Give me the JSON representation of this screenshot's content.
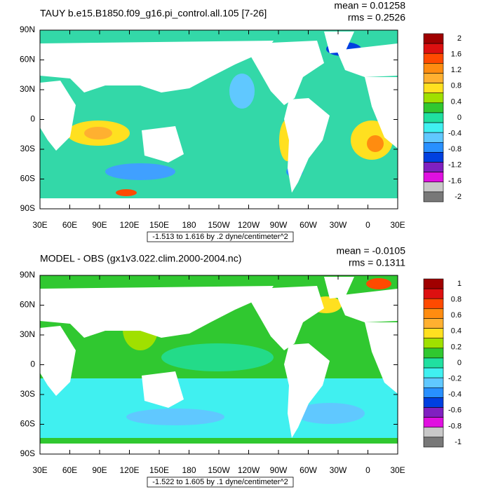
{
  "panels": [
    {
      "title": "TAUY b.e15.B1850.f09_g16.pi_control.all.105 [7-26]",
      "mean": "mean = 0.01258",
      "rms": "rms = 0.2526",
      "range_label": "-1.513 to 1.616 by .2 dyne/centimeter^2",
      "colorbar_labels": [
        "2",
        "1.6",
        "1.2",
        "0.8",
        "0.4",
        "0",
        "-0.4",
        "-0.8",
        "-1.2",
        "-1.6",
        "-2"
      ]
    },
    {
      "title": "MODEL - OBS (gx1v3.022.clim.2000-2004.nc)",
      "mean": "mean = -0.0105",
      "rms": "rms = 0.1311",
      "range_label": "-1.522 to 1.605 by .1 dyne/centimeter^2",
      "colorbar_labels": [
        "1",
        "0.8",
        "0.6",
        "0.4",
        "0.2",
        "0",
        "-0.2",
        "-0.4",
        "-0.6",
        "-0.8",
        "-1"
      ]
    }
  ],
  "lat_labels": [
    "90N",
    "60N",
    "30N",
    "0",
    "30S",
    "60S",
    "90S"
  ],
  "lon_labels": [
    "30E",
    "60E",
    "90E",
    "120E",
    "150E",
    "180",
    "150W",
    "120W",
    "90W",
    "60W",
    "30W",
    "0",
    "30E"
  ],
  "colorbar_colors": [
    "#a00000",
    "#dd1010",
    "#ff4a00",
    "#ff8c10",
    "#ffb030",
    "#ffe020",
    "#a0e000",
    "#30c830",
    "#20e0a0",
    "#40f0f0",
    "#60c8ff",
    "#2890ff",
    "#0040e0",
    "#8020c0",
    "#e010e0",
    "#c8c8c8",
    "#787878"
  ]
}
